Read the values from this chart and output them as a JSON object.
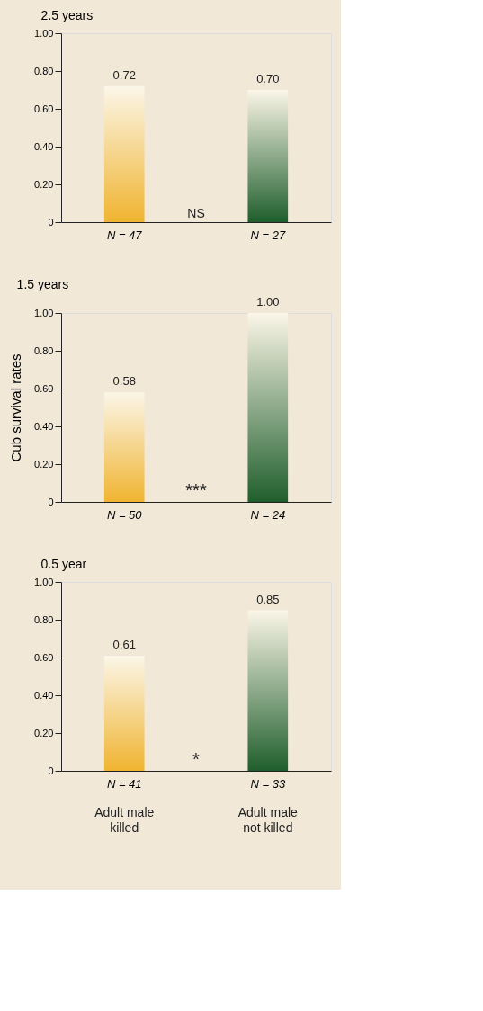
{
  "chart_data": [
    {
      "type": "bar",
      "title": "2.5 years",
      "categories": [
        "N = 47",
        "N = 27"
      ],
      "values": [
        0.72,
        0.7
      ],
      "value_labels": [
        "0.72",
        "0.70"
      ],
      "colors": [
        "#f0b430",
        "#1f5e2c"
      ],
      "ylim": [
        0,
        1
      ],
      "yticks": [
        0,
        {
          "value": 0.2,
          "label": "0.20"
        },
        {
          "value": 0.4,
          "label": "0.40"
        },
        {
          "value": 0.6,
          "label": "0.60"
        },
        {
          "value": 0.8,
          "label": "0.80"
        },
        {
          "value": 1,
          "label": "1.00"
        }
      ],
      "annotations": [
        "NS"
      ]
    },
    {
      "type": "bar",
      "title": "1.5 years",
      "ylabel": "Cub survival rates",
      "categories": [
        "N = 50",
        "N = 24"
      ],
      "values": [
        0.58,
        1.0
      ],
      "value_labels": [
        "0.58",
        "1.00"
      ],
      "colors": [
        "#f0b430",
        "#1f5e2c"
      ],
      "ylim": [
        0,
        1
      ],
      "yticks": [
        0,
        {
          "value": 0.2,
          "label": "0.20"
        },
        {
          "value": 0.4,
          "label": "0.40"
        },
        {
          "value": 0.6,
          "label": "0.60"
        },
        {
          "value": 0.8,
          "label": "0.80"
        },
        {
          "value": 1,
          "label": "1.00"
        }
      ],
      "annotations": [
        "***"
      ]
    },
    {
      "type": "bar",
      "title": "0.5 year",
      "categories": [
        "N = 41",
        "N = 33"
      ],
      "values": [
        0.61,
        0.85
      ],
      "value_labels": [
        "0.61",
        "0.85"
      ],
      "colors": [
        "#f0b430",
        "#1f5e2c"
      ],
      "ylim": [
        0,
        1
      ],
      "yticks": [
        0,
        {
          "value": 0.2,
          "label": "0.20"
        },
        {
          "value": 0.4,
          "label": "0.40"
        },
        {
          "value": 0.6,
          "label": "0.60"
        },
        {
          "value": 0.8,
          "label": "0.80"
        },
        {
          "value": 1,
          "label": "1.00"
        }
      ],
      "annotations": [
        "*",
        "Adult male killed",
        "Adult male not killed"
      ]
    }
  ]
}
